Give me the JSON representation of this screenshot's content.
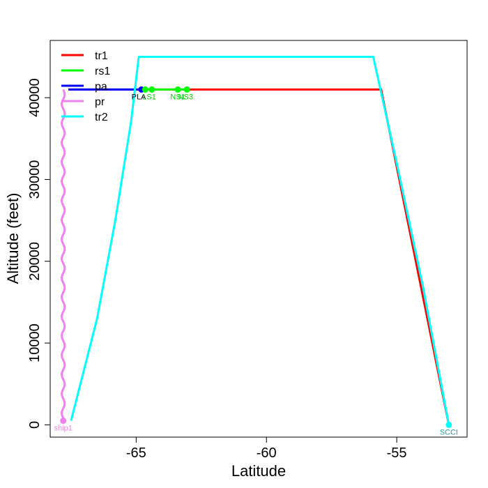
{
  "chart_data": {
    "type": "line",
    "title": "",
    "xlabel": "Latitude",
    "ylabel": "Altitude (feet)",
    "xlim": [
      -68.3,
      -52.3
    ],
    "ylim": [
      -1500,
      47000
    ],
    "x_ticks": [
      -65,
      -60,
      -55
    ],
    "x_tick_labels": [
      "-65",
      "-60",
      "-55"
    ],
    "y_ticks": [
      0,
      10000,
      20000,
      30000,
      40000
    ],
    "y_tick_labels": [
      "0",
      "10000",
      "20000",
      "30000",
      "40000"
    ],
    "grid": false,
    "legend_position": "top-left",
    "series": [
      {
        "name": "tr1",
        "color": "#ff0000",
        "x": [
          -67.6,
          -64.8,
          -55.6,
          -53.0
        ],
        "y": [
          41000,
          41000,
          41000,
          0
        ]
      },
      {
        "name": "rs1",
        "color": "#00ff00",
        "x": [
          -64.8,
          -63.0
        ],
        "y": [
          41000,
          41000
        ]
      },
      {
        "name": "pa",
        "color": "#0000ff",
        "x": [
          -67.6,
          -64.8
        ],
        "y": [
          41000,
          41000
        ]
      },
      {
        "name": "pr",
        "color": "#ee82ee",
        "x": [
          -67.8,
          -67.8
        ],
        "y": [
          41000,
          500
        ]
      },
      {
        "name": "tr2",
        "color": "#00ffff",
        "x": [
          -67.5,
          -66.5,
          -65.8,
          -65.2,
          -64.9,
          -55.9,
          -55.0,
          -54.0,
          -53.0
        ],
        "y": [
          500,
          13000,
          25000,
          37000,
          45000,
          45000,
          32000,
          17000,
          0
        ]
      }
    ],
    "markers": [
      {
        "series": "pa",
        "x": -64.8,
        "y": 41000,
        "color": "#0000ff"
      },
      {
        "series": "rs1",
        "x": -64.65,
        "y": 41000,
        "color": "#00ff00"
      },
      {
        "series": "rs1",
        "x": -64.4,
        "y": 41000,
        "color": "#00ff00"
      },
      {
        "series": "rs1",
        "x": -63.4,
        "y": 41000,
        "color": "#00ff00"
      },
      {
        "series": "rs1",
        "x": -63.05,
        "y": 41000,
        "color": "#00ff00"
      },
      {
        "series": "pr",
        "x": -67.8,
        "y": 500,
        "color": "#ee82ee"
      },
      {
        "series": "tr2",
        "x": -53.0,
        "y": 0,
        "color": "#00ffff"
      }
    ],
    "point_labels": [
      {
        "text": "PLA",
        "x": -64.9,
        "y": 41000,
        "color": "#000000"
      },
      {
        "text": "LS1",
        "x": -64.5,
        "y": 41000,
        "color": "#00cc00"
      },
      {
        "text": "NS1",
        "x": -63.4,
        "y": 41000,
        "color": "#00cc00"
      },
      {
        "text": "NS3",
        "x": -63.1,
        "y": 41000,
        "color": "#00cc00"
      },
      {
        "text": "ship1",
        "x": -67.8,
        "y": 500,
        "color": "#ee82ee"
      },
      {
        "text": "SCCI",
        "x": -53.0,
        "y": 0,
        "color": "#339999"
      }
    ]
  }
}
